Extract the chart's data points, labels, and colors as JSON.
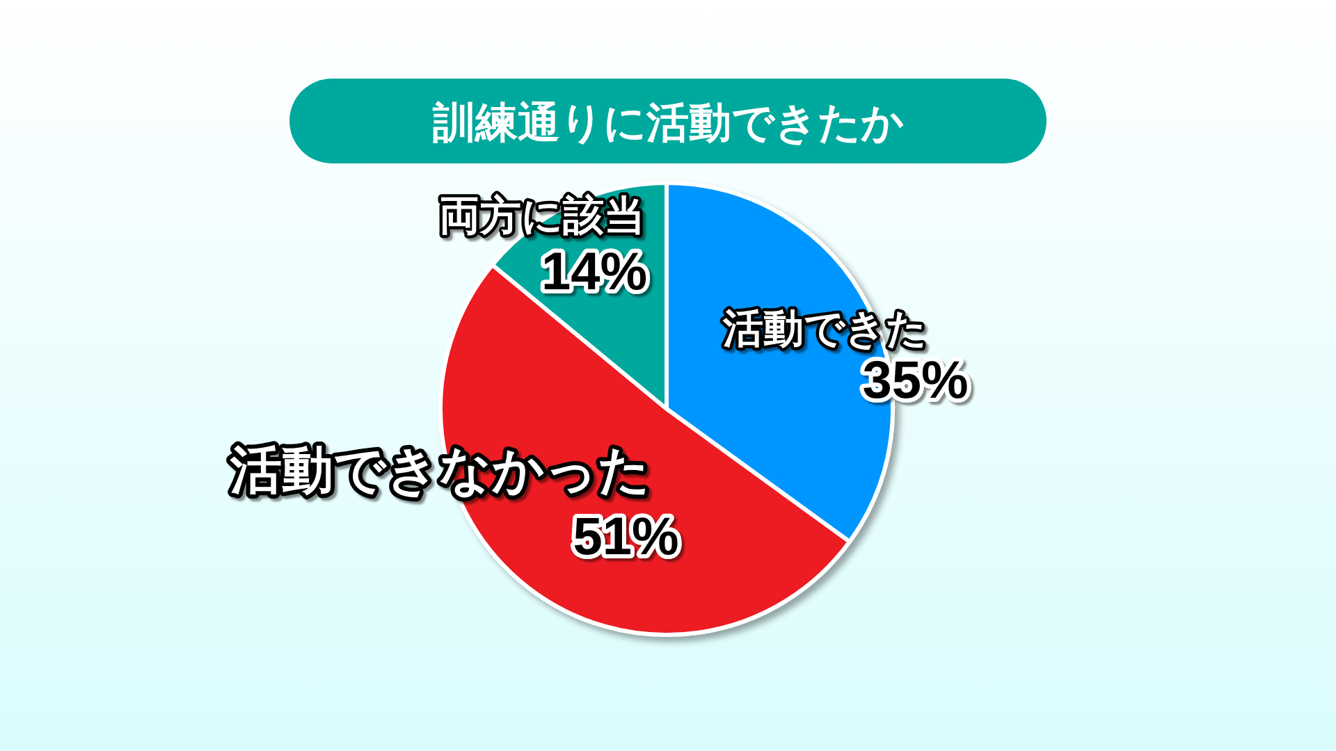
{
  "chart_data": {
    "type": "pie",
    "title": "訓練通りに活動できたか",
    "categories": [
      "活動できた",
      "活動できなかった",
      "両方に該当"
    ],
    "values": [
      35,
      51,
      14
    ],
    "colors": [
      "#0096ff",
      "#ec1c24",
      "#00a89d"
    ],
    "value_labels": [
      "35%",
      "51%",
      "14%"
    ]
  }
}
